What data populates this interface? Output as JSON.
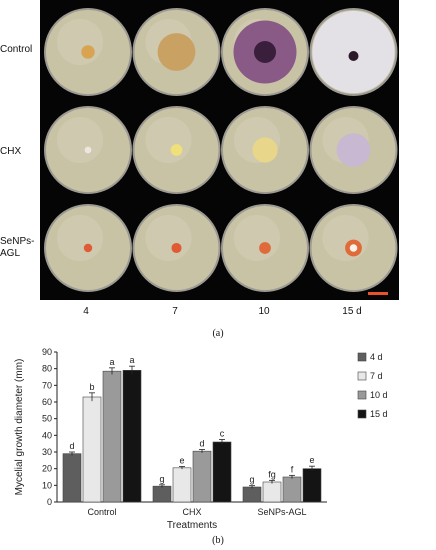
{
  "panel_a": {
    "caption": "(a)",
    "row_labels": [
      "Control",
      "CHX",
      "SeNPs-AGL"
    ],
    "col_labels": [
      "4",
      "7",
      "10",
      "15 d"
    ],
    "colors": {
      "background": "#050505",
      "agar": "#c9c3a6",
      "scale_bar": "#e8532a"
    },
    "photo_grid": [
      [
        {
          "colony": "small tan colony",
          "color": "#d9a451",
          "size": 0.16
        },
        {
          "colony": "feathery tan colony",
          "color": "#c9a263",
          "size": 0.45
        },
        {
          "colony": "purple colony with dark center",
          "color": "#8a5a87",
          "size": 0.75
        },
        {
          "colony": "white woolly colony covering plate",
          "color": "#e3e0e6",
          "size": 0.98
        }
      ],
      [
        {
          "colony": "tiny white colony",
          "color": "#ece8df",
          "size": 0.08
        },
        {
          "colony": "small yellow colony",
          "color": "#f0e07a",
          "size": 0.14
        },
        {
          "colony": "yellow colony",
          "color": "#e8d68a",
          "size": 0.3
        },
        {
          "colony": "white and purple colony",
          "color": "#c8b8d2",
          "size": 0.4
        }
      ],
      [
        {
          "colony": "small orange colony",
          "color": "#e05a33",
          "size": 0.1
        },
        {
          "colony": "small orange colony",
          "color": "#e05a33",
          "size": 0.12
        },
        {
          "colony": "orange colony",
          "color": "#e06a3a",
          "size": 0.14
        },
        {
          "colony": "orange ring with white center",
          "color": "#e06a3a",
          "size": 0.2
        }
      ]
    ]
  },
  "panel_b": {
    "caption": "(b)",
    "colors": {
      "4 d": "#5e5e5e",
      "7 d": "#e8e8e8",
      "10 d": "#9a9a9a",
      "15 d": "#141414"
    }
  },
  "chart_data": {
    "type": "bar",
    "title": "",
    "xlabel": "Treatments",
    "ylabel": "Mycelial growth diameter (mm)",
    "categories": [
      "Control",
      "CHX",
      "SeNPs-AGL"
    ],
    "ylim": [
      0,
      90
    ],
    "yticks": [
      0,
      10,
      20,
      30,
      40,
      50,
      60,
      70,
      80,
      90
    ],
    "grid": false,
    "legend_position": "right",
    "series": [
      {
        "name": "4 d",
        "values": [
          29,
          9.5,
          9
        ],
        "errors": [
          1,
          0.8,
          0.8
        ],
        "letters": [
          "d",
          "g",
          "g"
        ]
      },
      {
        "name": "7 d",
        "values": [
          63,
          20.5,
          12
        ],
        "errors": [
          2.5,
          0.8,
          1
        ],
        "letters": [
          "b",
          "e",
          "fg"
        ]
      },
      {
        "name": "10 d",
        "values": [
          78.5,
          30.5,
          15
        ],
        "errors": [
          2,
          1,
          1
        ],
        "letters": [
          "a",
          "d",
          "f"
        ]
      },
      {
        "name": "15 d",
        "values": [
          79,
          36,
          20
        ],
        "errors": [
          2.5,
          1.5,
          1.5
        ],
        "letters": [
          "a",
          "c",
          "e"
        ]
      }
    ]
  }
}
